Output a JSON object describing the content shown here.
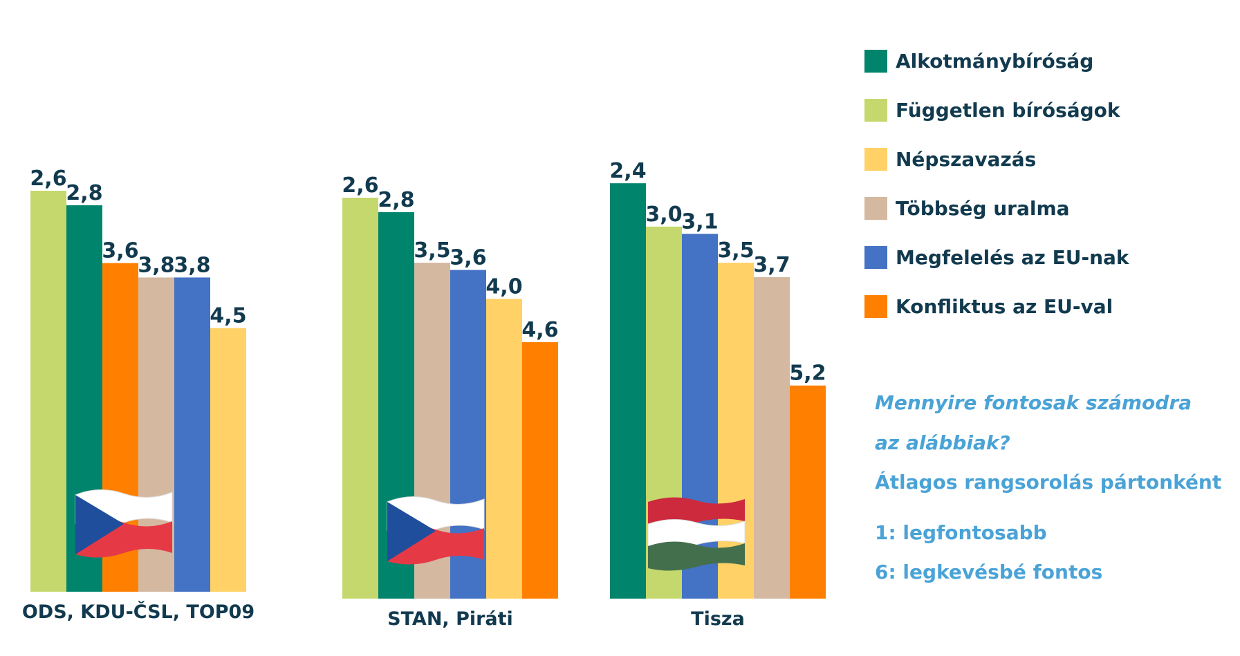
{
  "chart_data": {
    "type": "bar",
    "title": "",
    "xlabel": "",
    "ylabel": "",
    "ylim": [
      0,
      6
    ],
    "groups": [
      {
        "name": "ODS, KDU-ČSL, TOP09",
        "flag": "czech-flag",
        "bars": [
          {
            "series": "Független bíróságok",
            "value": 2.6,
            "label": "2,6"
          },
          {
            "series": "Alkotmánybíróság",
            "value": 2.8,
            "label": "2,8"
          },
          {
            "series": "Konfliktus az EU-val",
            "value": 3.6,
            "label": "3,6"
          },
          {
            "series": "Többség uralma",
            "value": 3.8,
            "label": "3,8"
          },
          {
            "series": "Megfelelés az EU-nak",
            "value": 3.8,
            "label": "3,8"
          },
          {
            "series": "Népszavazás",
            "value": 4.5,
            "label": "4,5"
          }
        ]
      },
      {
        "name": "STAN, Piráti",
        "flag": "czech-flag",
        "bars": [
          {
            "series": "Független bíróságok",
            "value": 2.6,
            "label": "2,6"
          },
          {
            "series": "Alkotmánybíróság",
            "value": 2.8,
            "label": "2,8"
          },
          {
            "series": "Többség uralma",
            "value": 3.5,
            "label": "3,5"
          },
          {
            "series": "Megfelelés az EU-nak",
            "value": 3.6,
            "label": "3,6"
          },
          {
            "series": "Népszavazás",
            "value": 4.0,
            "label": "4,0"
          },
          {
            "series": "Konfliktus az EU-val",
            "value": 4.6,
            "label": "4,6"
          }
        ]
      },
      {
        "name": "Tisza",
        "flag": "hungarian-flag",
        "bars": [
          {
            "series": "Alkotmánybíróság",
            "value": 2.4,
            "label": "2,4"
          },
          {
            "series": "Független bíróságok",
            "value": 3.0,
            "label": "3,0"
          },
          {
            "series": "Megfelelés az EU-nak",
            "value": 3.1,
            "label": "3,1"
          },
          {
            "series": "Népszavazás",
            "value": 3.5,
            "label": "3,5"
          },
          {
            "series": "Többség uralma",
            "value": 3.7,
            "label": "3,7"
          },
          {
            "series": "Konfliktus az EU-val",
            "value": 5.2,
            "label": "5,2"
          }
        ]
      }
    ],
    "legend": {
      "position": "right",
      "items": [
        {
          "name": "Alkotmánybíróság",
          "color": "#00846c"
        },
        {
          "name": "Független bíróságok",
          "color": "#c5d86d"
        },
        {
          "name": "Népszavazás",
          "color": "#ffd166"
        },
        {
          "name": "Többség uralma",
          "color": "#d4b9a0"
        },
        {
          "name": "Megfelelés az EU-nak",
          "color": "#4472c4"
        },
        {
          "name": "Konfliktus az EU-val",
          "color": "#ff8000"
        }
      ]
    },
    "notes": [
      "Mennyire fontosak számodra",
      "az alábbiak?",
      "Átlagos rangsorolás pártonként",
      "1: legfontosabb",
      "6: legkevésbé fontos"
    ]
  },
  "colors": {
    "label_text": "#123a4f",
    "note_text": "#4aa3d7"
  }
}
